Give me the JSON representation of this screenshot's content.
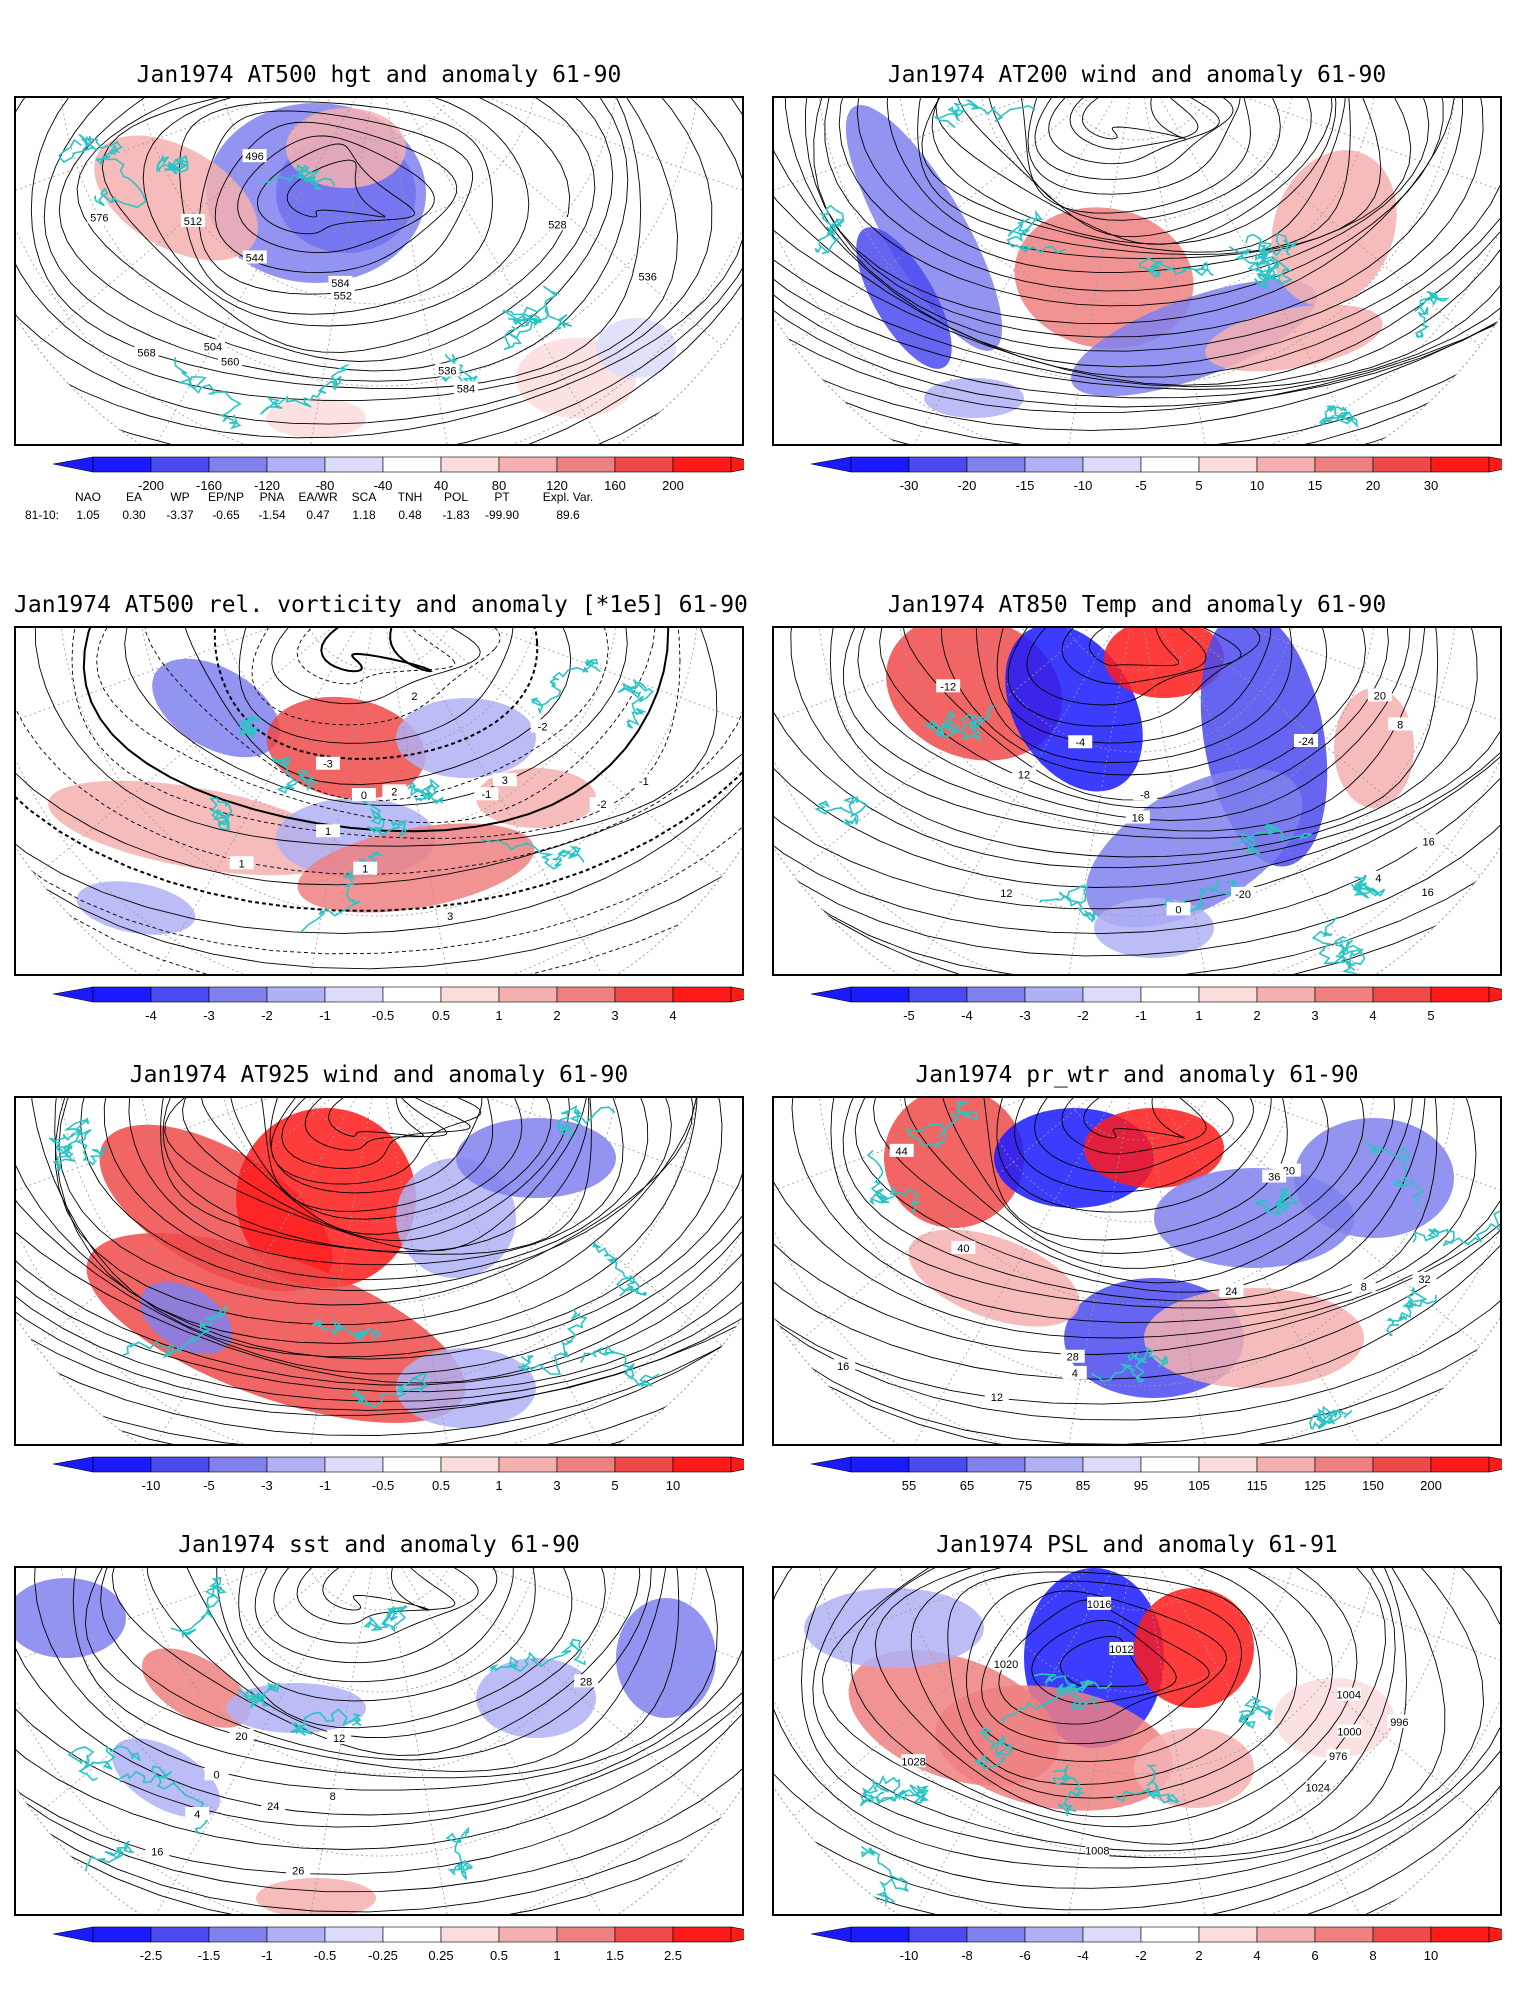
{
  "panels": [
    {
      "title": "Jan1974 AT500 hgt and anomaly 61-90",
      "contour_labels": [
        "584",
        "496",
        "504",
        "512",
        "528",
        "536",
        "536",
        "544",
        "552",
        "560",
        "568",
        "576",
        "584"
      ],
      "colorbar": [
        "-200",
        "-160",
        "-120",
        "-80",
        "-40",
        "40",
        "80",
        "120",
        "160",
        "200"
      ]
    },
    {
      "title": "Jan1974 AT200 wind and anomaly 61-90",
      "contour_labels": [],
      "colorbar": [
        "-30",
        "-20",
        "-15",
        "-10",
        "-5",
        "5",
        "10",
        "15",
        "20",
        "30"
      ]
    },
    {
      "title": "Jan1974 AT500 rel. vorticity and anomaly [*1e5] 61-90",
      "contour_labels": [
        "-2",
        "3",
        "2",
        "1",
        "-1",
        "0",
        "-2",
        "1",
        "-3",
        "3",
        "2",
        "-1",
        "1"
      ],
      "colorbar": [
        "-4",
        "-3",
        "-2",
        "-1",
        "-0.5",
        "0.5",
        "1",
        "2",
        "3",
        "4"
      ]
    },
    {
      "title": "Jan1974 AT850 Temp and anomaly 61-90",
      "contour_labels": [
        "16",
        "-24",
        "-20",
        "12",
        "-8",
        "-4",
        "-12",
        "0",
        "4",
        "8",
        "12",
        "16",
        "20",
        "16"
      ],
      "colorbar": [
        "-5",
        "-4",
        "-3",
        "-2",
        "-1",
        "1",
        "2",
        "3",
        "4",
        "5"
      ]
    },
    {
      "title": "Jan1974 AT925 wind and anomaly 61-90",
      "contour_labels": [],
      "colorbar": [
        "-10",
        "-5",
        "-3",
        "-1",
        "-0.5",
        "0.5",
        "1",
        "3",
        "5",
        "10"
      ]
    },
    {
      "title": "Jan1974 pr_wtr and anomaly 61-90",
      "contour_labels": [
        "40",
        "44",
        "32",
        "28",
        "24",
        "12",
        "16",
        "20",
        "8",
        "4",
        "36"
      ],
      "colorbar": [
        "55",
        "65",
        "75",
        "85",
        "95",
        "105",
        "115",
        "125",
        "150",
        "200"
      ]
    },
    {
      "title": "Jan1974 sst and anomaly 61-90",
      "contour_labels": [
        "24",
        "20",
        "16",
        "12",
        "0",
        "4",
        "8",
        "28",
        "26"
      ],
      "colorbar": [
        "-2.5",
        "-1.5",
        "-1",
        "-0.5",
        "-0.25",
        "0.25",
        "0.5",
        "1",
        "1.5",
        "2.5"
      ]
    },
    {
      "title": "Jan1974 PSL and anomaly 61-91",
      "contour_labels": [
        "1016",
        "1008",
        "1020",
        "1012",
        "1024",
        "1028",
        "976",
        "996",
        "1004",
        "1000"
      ],
      "colorbar": [
        "-10",
        "-8",
        "-6",
        "-4",
        "-2",
        "2",
        "4",
        "6",
        "8",
        "10"
      ]
    }
  ],
  "indices": {
    "headers": [
      "NAO",
      "EA",
      "WP",
      "EP/NP",
      "PNA",
      "EA/WR",
      "SCA",
      "TNH",
      "POL",
      "PT",
      "Expl. Var."
    ],
    "row_label": "81-10:",
    "values": [
      "1.05",
      "0.30",
      "-3.37",
      "-0.65",
      "-1.54",
      "0.47",
      "1.18",
      "0.48",
      "-1.83",
      "-99.90",
      "89.6"
    ]
  },
  "colors": {
    "coastline": "#2bc4c4",
    "contour": "#000000",
    "neg": [
      "#1a1aff",
      "#4a4aee",
      "#8080ee",
      "#b0b0f4",
      "#dcdcfa"
    ],
    "pos": [
      "#fadcdc",
      "#f4b0b0",
      "#ee8080",
      "#ee4a4a",
      "#ff1a1a"
    ]
  }
}
